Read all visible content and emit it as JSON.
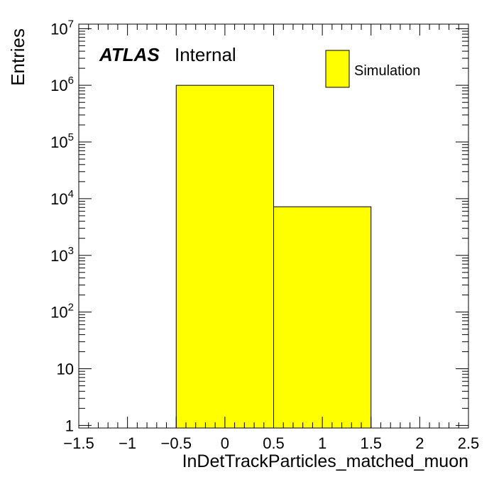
{
  "chart_data": {
    "type": "bar",
    "histogram": true,
    "ylabel": "Entries",
    "xlabel": "InDetTrackParticles_matched_muon",
    "atlas_label": {
      "bold": "ATLAS",
      "normal": "Internal"
    },
    "xlim": [
      -1.5,
      2.5
    ],
    "ylim": [
      0.9,
      12000000
    ],
    "yscale": "log",
    "x_tick_labels": [
      "−1.5",
      "−1",
      "−0.5",
      "0",
      "0.5",
      "1",
      "1.5",
      "2",
      "2.5"
    ],
    "x_tick_values": [
      -1.5,
      -1,
      -0.5,
      0,
      0.5,
      1,
      1.5,
      2,
      2.5
    ],
    "y_tick_labels": [
      {
        "v": 1,
        "base": "1",
        "exp": ""
      },
      {
        "v": 10,
        "base": "10",
        "exp": ""
      },
      {
        "v": 100,
        "base": "10",
        "exp": "2"
      },
      {
        "v": 1000,
        "base": "10",
        "exp": "3"
      },
      {
        "v": 10000,
        "base": "10",
        "exp": "4"
      },
      {
        "v": 100000,
        "base": "10",
        "exp": "5"
      },
      {
        "v": 1000000,
        "base": "10",
        "exp": "6"
      },
      {
        "v": 10000000,
        "base": "10",
        "exp": "7"
      }
    ],
    "series": [
      {
        "name": "Simulation",
        "bin_edges": [
          -0.5,
          0.5,
          1.5
        ],
        "values": [
          1000000,
          7200
        ],
        "color": "#ffff00"
      }
    ],
    "legend": {
      "placement": "top-right"
    }
  }
}
